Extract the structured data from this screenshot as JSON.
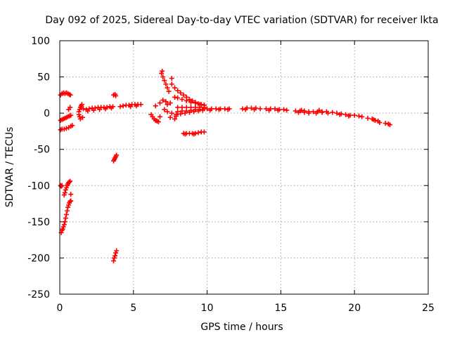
{
  "chart_data": {
    "type": "scatter",
    "title": "Day 092 of 2025, Sidereal Day-to-day VTEC variation (SDTVAR) for receiver lkta",
    "xlabel": "GPS time / hours",
    "ylabel": "SDTVAR / TECUs",
    "xlim": [
      0,
      25
    ],
    "ylim": [
      -250,
      100
    ],
    "xticks": [
      "0",
      "5",
      "10",
      "15",
      "20",
      "25"
    ],
    "yticks": [
      "100",
      "50",
      "0",
      "-50",
      "-100",
      "-150",
      "-200",
      "-250"
    ],
    "grid": true,
    "marker": "+",
    "marker_color": "#ff0000",
    "series": [
      {
        "values": [
          [
            0.05,
            25
          ],
          [
            0.15,
            27
          ],
          [
            0.25,
            28
          ],
          [
            0.35,
            27
          ],
          [
            0.45,
            28
          ],
          [
            0.55,
            27
          ],
          [
            0.65,
            26
          ],
          [
            0.72,
            25
          ],
          [
            0.05,
            -10
          ],
          [
            0.15,
            -9
          ],
          [
            0.25,
            -8
          ],
          [
            0.35,
            -7
          ],
          [
            0.45,
            -6
          ],
          [
            0.55,
            -5
          ],
          [
            0.65,
            -4
          ],
          [
            0.75,
            -3
          ],
          [
            0.05,
            -23
          ],
          [
            0.15,
            -22
          ],
          [
            0.3,
            -22
          ],
          [
            0.45,
            -21
          ],
          [
            0.6,
            -20
          ],
          [
            0.75,
            -18
          ],
          [
            0.85,
            -17
          ],
          [
            0.05,
            -100
          ],
          [
            0.1,
            -101
          ],
          [
            0.15,
            -100
          ],
          [
            0.1,
            -165
          ],
          [
            0.15,
            -162
          ],
          [
            0.2,
            -160
          ],
          [
            0.25,
            -157
          ],
          [
            0.3,
            -154
          ],
          [
            0.35,
            -150
          ],
          [
            0.4,
            -145
          ],
          [
            0.45,
            -140
          ],
          [
            0.5,
            -135
          ],
          [
            0.55,
            -130
          ],
          [
            0.6,
            -127
          ],
          [
            0.65,
            -124
          ],
          [
            0.7,
            -122
          ],
          [
            0.75,
            -121
          ],
          [
            0.3,
            -113
          ],
          [
            0.35,
            -110
          ],
          [
            0.4,
            -106
          ],
          [
            0.45,
            -103
          ],
          [
            0.5,
            -100
          ],
          [
            0.55,
            -98
          ],
          [
            0.6,
            -96
          ],
          [
            0.65,
            -95
          ],
          [
            0.7,
            -94
          ],
          [
            0.75,
            -112
          ],
          [
            0.7,
            8
          ],
          [
            0.6,
            5
          ],
          [
            1.3,
            2
          ],
          [
            1.35,
            5
          ],
          [
            1.4,
            8
          ],
          [
            1.45,
            10
          ],
          [
            1.3,
            -2
          ],
          [
            1.35,
            -5
          ],
          [
            1.4,
            -8
          ],
          [
            1.5,
            12
          ],
          [
            1.55,
            -6
          ],
          [
            1.6,
            6
          ],
          [
            1.8,
            5
          ],
          [
            2.0,
            6
          ],
          [
            2.2,
            7
          ],
          [
            2.4,
            7
          ],
          [
            2.6,
            8
          ],
          [
            2.8,
            8
          ],
          [
            3.0,
            8
          ],
          [
            3.2,
            8
          ],
          [
            3.4,
            9
          ],
          [
            3.6,
            9
          ],
          [
            1.9,
            3
          ],
          [
            2.3,
            4
          ],
          [
            2.7,
            5
          ],
          [
            3.1,
            6
          ],
          [
            3.5,
            7
          ],
          [
            3.65,
            25
          ],
          [
            3.75,
            26
          ],
          [
            3.8,
            24
          ],
          [
            3.65,
            -66
          ],
          [
            3.7,
            -64
          ],
          [
            3.75,
            -62
          ],
          [
            3.8,
            -60
          ],
          [
            3.85,
            -58
          ],
          [
            3.65,
            -204
          ],
          [
            3.7,
            -200
          ],
          [
            3.75,
            -197
          ],
          [
            3.8,
            -193
          ],
          [
            3.85,
            -190
          ],
          [
            4.1,
            9
          ],
          [
            4.3,
            10
          ],
          [
            4.5,
            11
          ],
          [
            4.7,
            11
          ],
          [
            4.9,
            12
          ],
          [
            5.1,
            12
          ],
          [
            5.3,
            12
          ],
          [
            5.5,
            12
          ],
          [
            5.2,
            10
          ],
          [
            4.8,
            9
          ],
          [
            6.2,
            -2
          ],
          [
            6.3,
            -5
          ],
          [
            6.4,
            -8
          ],
          [
            6.5,
            -10
          ],
          [
            6.6,
            -11
          ],
          [
            6.7,
            -12
          ],
          [
            6.8,
            -5
          ],
          [
            6.5,
            10
          ],
          [
            6.8,
            14
          ],
          [
            6.9,
            55
          ],
          [
            7.0,
            50
          ],
          [
            7.1,
            45
          ],
          [
            7.2,
            40
          ],
          [
            7.3,
            35
          ],
          [
            7.4,
            30
          ],
          [
            6.95,
            58
          ],
          [
            7.6,
            48
          ],
          [
            7.0,
            18
          ],
          [
            7.2,
            16
          ],
          [
            7.5,
            14
          ],
          [
            7.3,
            12
          ],
          [
            7.1,
            5
          ],
          [
            7.3,
            2
          ],
          [
            7.6,
            0
          ],
          [
            7.9,
            -4
          ],
          [
            7.5,
            -6
          ],
          [
            7.8,
            -8
          ],
          [
            7.6,
            40
          ],
          [
            7.8,
            35
          ],
          [
            8.0,
            31
          ],
          [
            8.2,
            28
          ],
          [
            8.4,
            25
          ],
          [
            8.6,
            22
          ],
          [
            8.8,
            19
          ],
          [
            9.0,
            17
          ],
          [
            9.2,
            15
          ],
          [
            9.4,
            13
          ],
          [
            9.6,
            12
          ],
          [
            9.8,
            11
          ],
          [
            7.8,
            22
          ],
          [
            8.0,
            21
          ],
          [
            8.3,
            19
          ],
          [
            8.6,
            17
          ],
          [
            8.9,
            15
          ],
          [
            9.2,
            14
          ],
          [
            9.5,
            12
          ],
          [
            9.8,
            11
          ],
          [
            8.0,
            8
          ],
          [
            8.3,
            8
          ],
          [
            8.6,
            8
          ],
          [
            8.9,
            8
          ],
          [
            9.2,
            8
          ],
          [
            9.5,
            8
          ],
          [
            9.8,
            8
          ],
          [
            8.0,
            2
          ],
          [
            8.3,
            3
          ],
          [
            8.6,
            3
          ],
          [
            8.9,
            4
          ],
          [
            9.2,
            5
          ],
          [
            9.5,
            5
          ],
          [
            9.8,
            6
          ],
          [
            7.9,
            -2
          ],
          [
            8.2,
            -1
          ],
          [
            8.5,
            0
          ],
          [
            8.8,
            1
          ],
          [
            9.1,
            2
          ],
          [
            9.4,
            3
          ],
          [
            9.7,
            4
          ],
          [
            8.4,
            -28
          ],
          [
            8.6,
            -28
          ],
          [
            8.8,
            -28
          ],
          [
            9.0,
            -28
          ],
          [
            9.2,
            -28
          ],
          [
            9.4,
            -27
          ],
          [
            9.6,
            -26
          ],
          [
            9.8,
            -26
          ],
          [
            8.5,
            -29
          ],
          [
            9.1,
            -29
          ],
          [
            10.0,
            6
          ],
          [
            10.3,
            6
          ],
          [
            10.6,
            6
          ],
          [
            10.9,
            6
          ],
          [
            11.2,
            6
          ],
          [
            11.5,
            6
          ],
          [
            10.2,
            4
          ],
          [
            10.8,
            5
          ],
          [
            11.4,
            5
          ],
          [
            12.4,
            6
          ],
          [
            12.7,
            7
          ],
          [
            13.0,
            7
          ],
          [
            13.3,
            7
          ],
          [
            13.6,
            6
          ],
          [
            12.6,
            5
          ],
          [
            13.2,
            5
          ],
          [
            14.0,
            6
          ],
          [
            14.3,
            6
          ],
          [
            14.6,
            6
          ],
          [
            14.9,
            5
          ],
          [
            15.2,
            5
          ],
          [
            15.4,
            4
          ],
          [
            14.2,
            4
          ],
          [
            14.8,
            4
          ],
          [
            16.0,
            3
          ],
          [
            16.3,
            3
          ],
          [
            16.6,
            3
          ],
          [
            16.9,
            2
          ],
          [
            16.2,
            1
          ],
          [
            16.6,
            1
          ],
          [
            16.9,
            0
          ],
          [
            16.4,
            4
          ],
          [
            17.2,
            2
          ],
          [
            17.5,
            2
          ],
          [
            17.8,
            2
          ],
          [
            18.1,
            2
          ],
          [
            17.4,
            0
          ],
          [
            17.8,
            1
          ],
          [
            18.2,
            0
          ],
          [
            17.6,
            4
          ],
          [
            18.5,
            1
          ],
          [
            18.8,
            0
          ],
          [
            19.1,
            -1
          ],
          [
            19.4,
            -2
          ],
          [
            19.7,
            -3
          ],
          [
            20.0,
            -3
          ],
          [
            20.3,
            -4
          ],
          [
            20.5,
            -5
          ],
          [
            19.0,
            -2
          ],
          [
            19.6,
            -4
          ],
          [
            20.9,
            -7
          ],
          [
            21.2,
            -8
          ],
          [
            21.4,
            -10
          ],
          [
            21.6,
            -11
          ],
          [
            21.3,
            -9
          ],
          [
            21.7,
            -13
          ],
          [
            22.1,
            -14
          ],
          [
            22.3,
            -15
          ],
          [
            22.4,
            -16
          ]
        ]
      }
    ]
  }
}
